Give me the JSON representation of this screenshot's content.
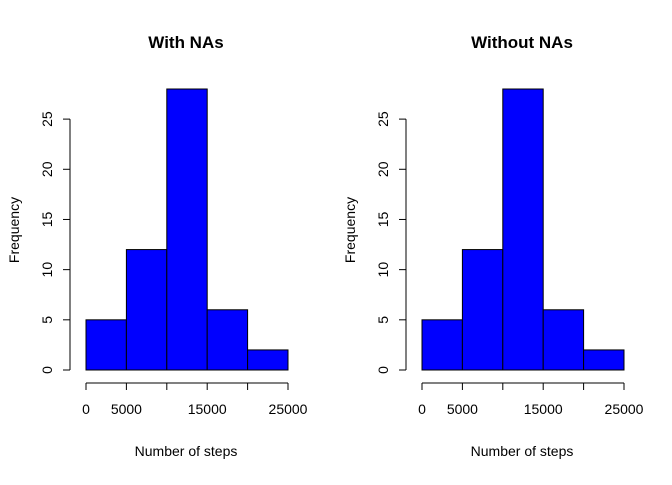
{
  "chart_data": [
    {
      "type": "bar",
      "title": "With NAs",
      "xlabel": "Number of steps",
      "ylabel": "Frequency",
      "categories": [
        "0-5000",
        "5000-10000",
        "10000-15000",
        "15000-20000",
        "20000-25000"
      ],
      "bins": [
        0,
        5000,
        10000,
        15000,
        20000,
        25000
      ],
      "values": [
        5,
        12,
        28,
        6,
        2
      ],
      "xticks": [
        0,
        5000,
        15000,
        25000
      ],
      "xtick_positions": [
        0,
        5000,
        10000,
        15000,
        20000,
        25000
      ],
      "yticks": [
        0,
        5,
        10,
        15,
        20,
        25
      ],
      "xlim": [
        0,
        25000
      ],
      "ylim": [
        0,
        28
      ],
      "bar_color": "#0000ff",
      "grid": false,
      "legend": "none"
    },
    {
      "type": "bar",
      "title": "Without NAs",
      "xlabel": "Number of steps",
      "ylabel": "Frequency",
      "categories": [
        "0-5000",
        "5000-10000",
        "10000-15000",
        "15000-20000",
        "20000-25000"
      ],
      "bins": [
        0,
        5000,
        10000,
        15000,
        20000,
        25000
      ],
      "values": [
        5,
        12,
        28,
        6,
        2
      ],
      "xticks": [
        0,
        5000,
        15000,
        25000
      ],
      "xtick_positions": [
        0,
        5000,
        10000,
        15000,
        20000,
        25000
      ],
      "yticks": [
        0,
        5,
        10,
        15,
        20,
        25
      ],
      "xlim": [
        0,
        25000
      ],
      "ylim": [
        0,
        28
      ],
      "bar_color": "#0000ff",
      "grid": false,
      "legend": "none"
    }
  ]
}
